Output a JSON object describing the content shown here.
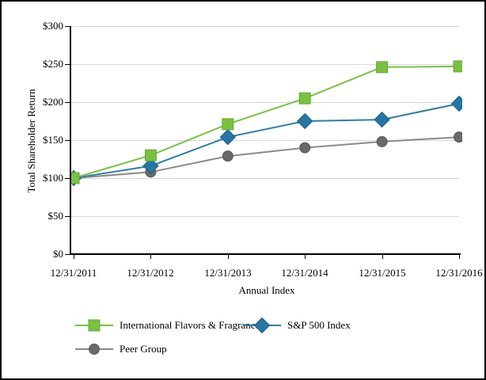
{
  "page": {
    "background_color": "#FFFFFF",
    "border_color": "#000000"
  },
  "chart_data": {
    "type": "line",
    "title": "",
    "xlabel": "Annual Index",
    "ylabel": "Total Shareholder Return",
    "categories": [
      "12/31/2011",
      "12/31/2012",
      "12/31/2013",
      "12/31/2014",
      "12/31/2015",
      "12/31/2016"
    ],
    "ylim": [
      0,
      300
    ],
    "ytick_step": 50,
    "ytick_labels": [
      "$0",
      "$50",
      "$100",
      "$150",
      "$200",
      "$250",
      "$300"
    ],
    "grid": true,
    "grid_color": "#D9D9D9",
    "axis_color": "#000000",
    "legend_position": "bottom-left, two rows",
    "series": [
      {
        "name": "International Flavors & Fragrances",
        "marker": "square",
        "color": "#7AC142",
        "line_color": "#7AC142",
        "edge_color": "#69A838",
        "values": [
          100,
          130,
          171,
          205,
          246,
          247
        ]
      },
      {
        "name": "S&P 500 Index",
        "marker": "diamond",
        "color": "#2576A4",
        "line_color": "#2E7DA6",
        "edge_color": "#1D5F86",
        "values": [
          100,
          116,
          154,
          175,
          177,
          198
        ]
      },
      {
        "name": "Peer Group",
        "marker": "circle",
        "color": "#696969",
        "line_color": "#8A8A8A",
        "edge_color": "#5A5A5A",
        "values": [
          100,
          108,
          129,
          140,
          148,
          154
        ]
      }
    ]
  }
}
